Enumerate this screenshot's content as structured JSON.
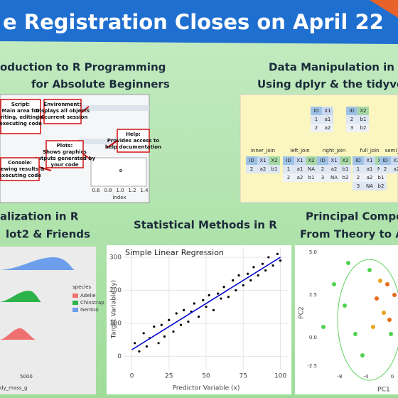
{
  "banner": {
    "title": "e Registration Closes on April 22"
  },
  "courses": {
    "intro": [
      "oduction to R Programming",
      "for Absolute Beginners"
    ],
    "dplyr": [
      "Data Manipulation in R",
      "Using dplyr & the tidyvers"
    ],
    "viz": [
      "alization in R",
      "lot2 & Friends"
    ],
    "stats": [
      "Statistical Methods in R"
    ],
    "pca": [
      "Principal Compon",
      "From Theory to Ap"
    ]
  },
  "rstudio": {
    "callouts": [
      [
        "Script:",
        "Main area for",
        "writing, editing &",
        "executing code"
      ],
      [
        "Environment:",
        "Displays all objects",
        "in current session"
      ],
      [
        "Help:",
        "Provides access to",
        "help documentation"
      ],
      [
        "Plots:",
        "Shows graphics",
        "outputs generated by",
        "your code"
      ],
      [
        "Console:",
        "Viewing results &",
        "executing code"
      ]
    ],
    "xticks": [
      "0.6",
      "0.8",
      "1.0",
      "1.2",
      "1.4"
    ],
    "xlabel": "Index"
  },
  "dplyr": {
    "inputs": [
      {
        "cols": [
          "ID",
          "X1"
        ],
        "rows": [
          [
            "1",
            "a1"
          ],
          [
            "2",
            "a2"
          ]
        ]
      },
      {
        "cols": [
          "ID",
          "X2"
        ],
        "rows": [
          [
            "2",
            "b1"
          ],
          [
            "3",
            "b2"
          ]
        ]
      }
    ],
    "joins": [
      {
        "name": "inner_join",
        "cols": [
          "ID",
          "X1",
          "X2"
        ],
        "rows": [
          [
            "2",
            "a2",
            "b1"
          ]
        ]
      },
      {
        "name": "left_join",
        "cols": [
          "ID",
          "X1",
          "X2"
        ],
        "rows": [
          [
            "1",
            "a1",
            "NA"
          ],
          [
            "2",
            "a2",
            "b1"
          ]
        ]
      },
      {
        "name": "right_join",
        "cols": [
          "ID",
          "X1",
          "X2"
        ],
        "rows": [
          [
            "2",
            "a2",
            "b1"
          ],
          [
            "3",
            "NA",
            "b2"
          ]
        ]
      },
      {
        "name": "full_join",
        "cols": [
          "ID",
          "X1",
          "X2"
        ],
        "rows": [
          [
            "1",
            "a1",
            "NA"
          ],
          [
            "2",
            "a2",
            "b1"
          ],
          [
            "3",
            "NA",
            "b2"
          ]
        ]
      },
      {
        "name": "semi_join",
        "cols": [
          "ID",
          "X1"
        ],
        "rows": [
          [
            "2",
            "a2"
          ]
        ]
      }
    ]
  },
  "ggplot": {
    "legend_title": "species",
    "legend": [
      "Adelie",
      "Chinstrap",
      "Gentoo"
    ],
    "xtick": "5000",
    "xlabel": "dy_mass_g"
  },
  "chart_data": {
    "type": "scatter",
    "title": "Simple Linear Regression",
    "x_label": "Predictor Variable (x)",
    "y_label": "Target Variable (y)",
    "xlim": [
      -5,
      105
    ],
    "ylim": [
      -40,
      330
    ],
    "xticks": [
      0,
      25,
      50,
      75,
      100
    ],
    "yticks": [
      0,
      100,
      200,
      300
    ],
    "grid": true,
    "color": "#000000",
    "x": [
      2,
      5,
      8,
      10,
      12,
      15,
      18,
      20,
      22,
      25,
      28,
      30,
      33,
      35,
      38,
      40,
      42,
      45,
      48,
      50,
      52,
      55,
      58,
      60,
      62,
      65,
      68,
      70,
      72,
      75,
      78,
      80,
      82,
      85,
      88,
      90,
      92,
      95,
      98,
      100
    ],
    "y": [
      40,
      15,
      70,
      30,
      55,
      90,
      40,
      95,
      60,
      110,
      75,
      130,
      95,
      140,
      105,
      135,
      160,
      120,
      170,
      150,
      185,
      140,
      190,
      175,
      210,
      180,
      230,
      200,
      245,
      215,
      250,
      230,
      270,
      245,
      280,
      260,
      300,
      275,
      310,
      290
    ],
    "fit": {
      "color": "#0000cc",
      "x": [
        0,
        100
      ],
      "y": [
        20,
        300
      ]
    }
  },
  "pca": {
    "yticks": [
      "5.0",
      "2.5",
      "0.0",
      "-2.5"
    ],
    "xticks": [
      "-8",
      "-4",
      "0"
    ],
    "xlabel": "PC1",
    "ylabel": "PC2"
  }
}
